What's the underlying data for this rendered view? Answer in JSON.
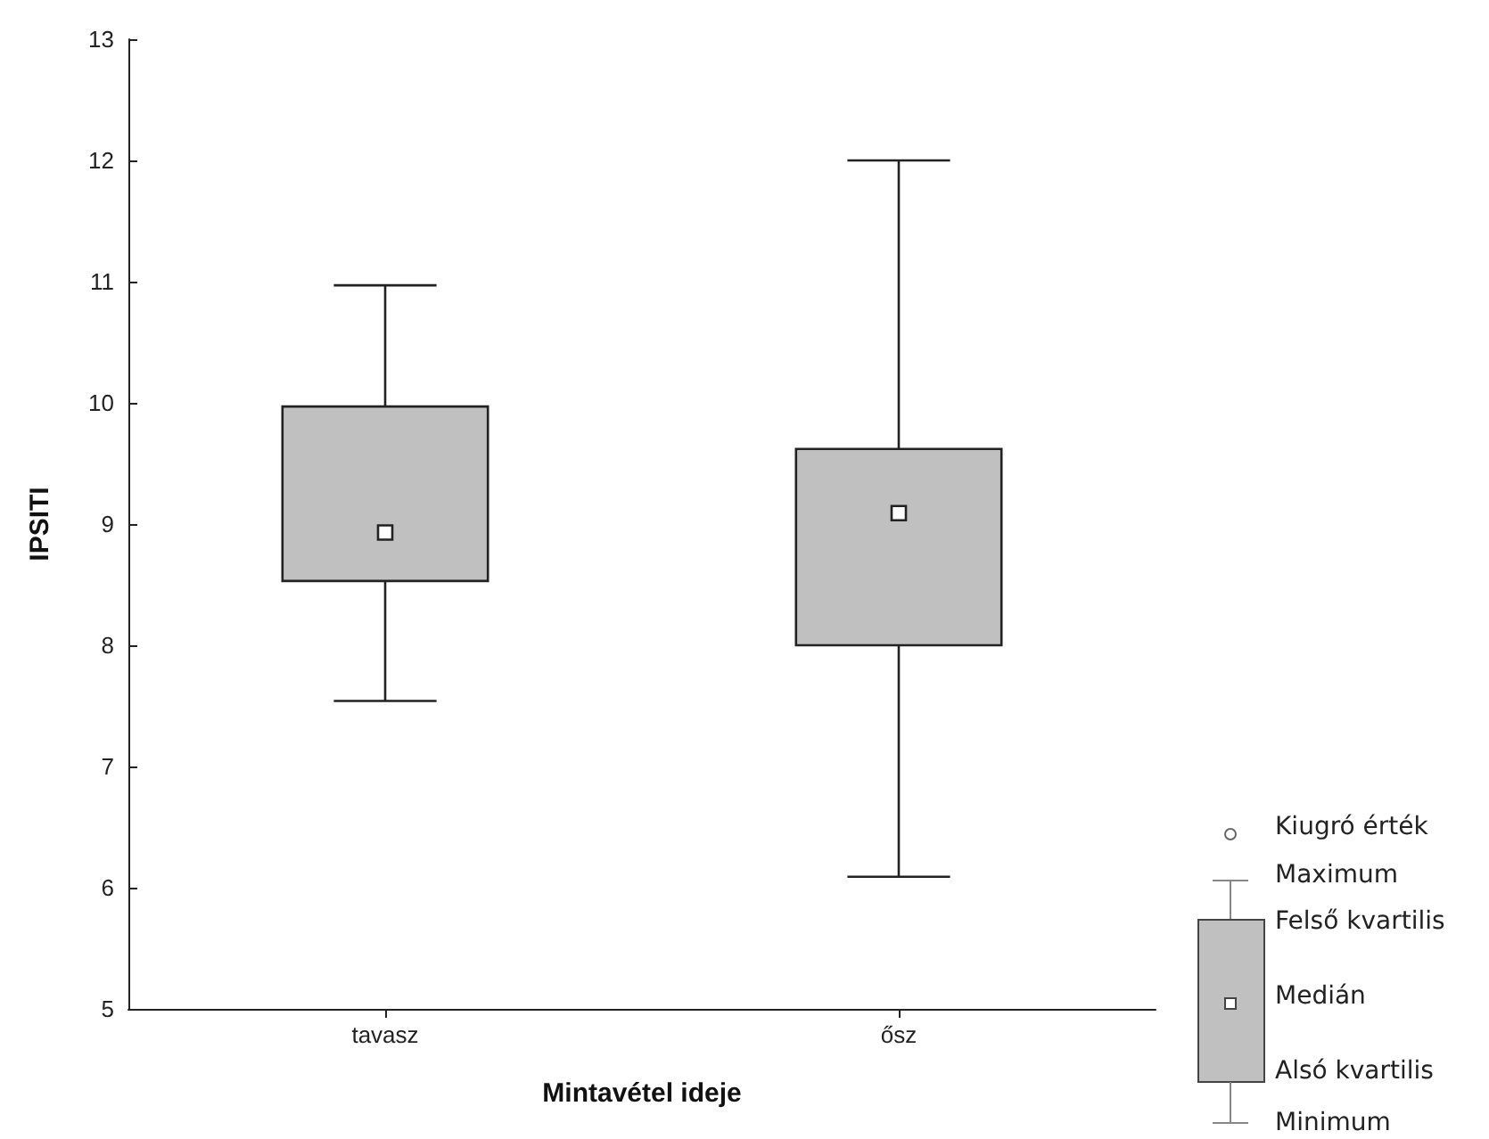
{
  "chart_data": {
    "type": "box",
    "xlabel": "Mintavétel ideje",
    "ylabel": "IPSITI",
    "categories": [
      "tavasz",
      "ősz"
    ],
    "boxes": [
      {
        "low": 7.54,
        "q1": 8.53,
        "median": 8.93,
        "q3": 9.97,
        "high": 10.97
      },
      {
        "low": 6.09,
        "q1": 8.0,
        "median": 9.09,
        "q3": 9.62,
        "high": 12.0
      }
    ],
    "color": "#c0c0c0",
    "ylim": [
      5,
      13
    ],
    "yticks": [
      5,
      6,
      7,
      8,
      9,
      10,
      11,
      12,
      13
    ],
    "grid": false,
    "annotations": [
      "Kiugró érték",
      "Maximum",
      "Felső kvartilis",
      "Medián",
      "Alsó kvartilis",
      "Minimum"
    ]
  }
}
